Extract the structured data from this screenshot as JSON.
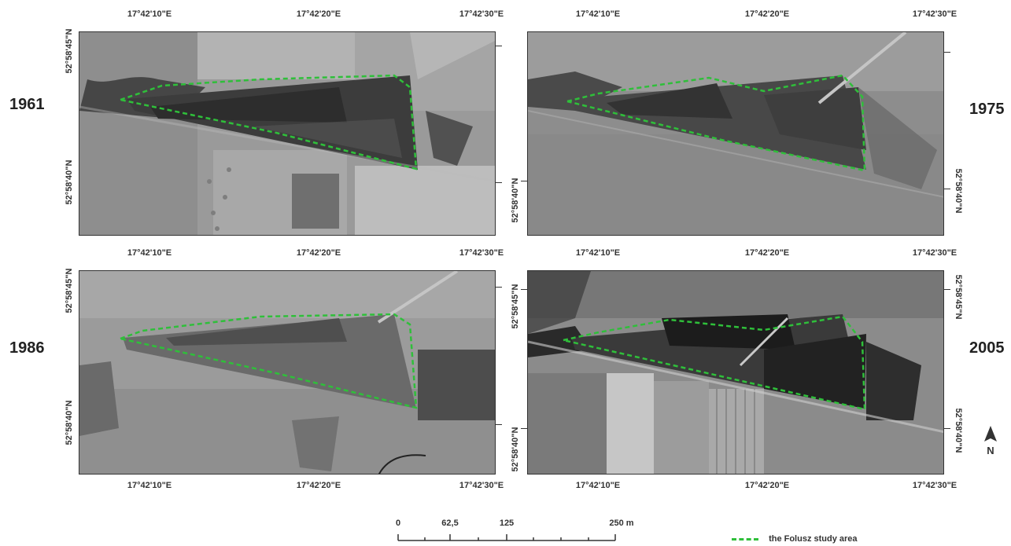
{
  "panels": [
    {
      "id": "p1961",
      "year": "1961"
    },
    {
      "id": "p1975",
      "year": "1975"
    },
    {
      "id": "p1986",
      "year": "1986"
    },
    {
      "id": "p2005",
      "year": "2005"
    }
  ],
  "longitude_labels": [
    "17°42'10\"E",
    "17°42'20\"E",
    "17°42'30\"E"
  ],
  "latitude_labels": [
    "52°58'45\"N",
    "52°58'40\"N"
  ],
  "scale_bar": {
    "labels": [
      "0",
      "62,5",
      "125",
      "250 m"
    ]
  },
  "legend": {
    "study_area": "the Folusz study area"
  },
  "north_arrow": {
    "letter": "N",
    "icon": "north-arrow-icon"
  },
  "colors": {
    "boundary": "#2fbf3a",
    "frame": "#333333"
  }
}
